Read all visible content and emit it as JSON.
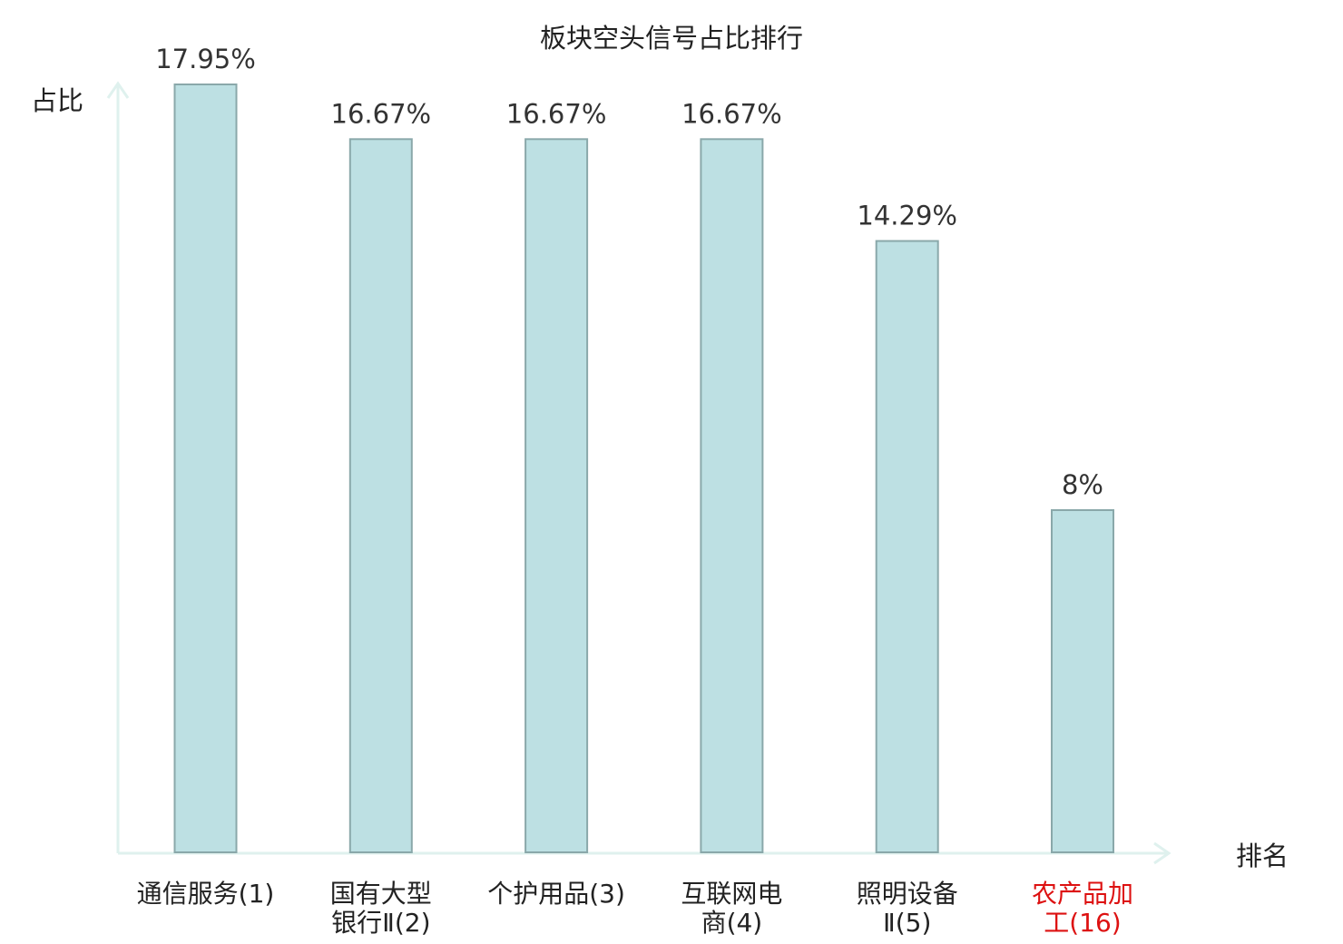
{
  "chart_data": {
    "type": "bar",
    "title": "板块空头信号占比排行",
    "ylabel": "占比",
    "xlabel": "排名",
    "categories": [
      [
        "通信服务(1)"
      ],
      [
        "国有大型",
        "银行Ⅱ(2)"
      ],
      [
        "个护用品(3)"
      ],
      [
        "互联网电",
        "商(4)"
      ],
      [
        "照明设备",
        "Ⅱ(5)"
      ],
      [
        "农产品加",
        "工(16)"
      ]
    ],
    "values": [
      17.95,
      16.67,
      16.67,
      16.67,
      14.29,
      8
    ],
    "value_labels": [
      "17.95%",
      "16.67%",
      "16.67%",
      "16.67%",
      "14.29%",
      "8%"
    ],
    "highlight_index": 5,
    "ylim": [
      0,
      17.95
    ],
    "grid": false,
    "colors": {
      "bar_fill": "#bde0e3",
      "bar_stroke": "#8aa8aa",
      "axis": "#dff1ee",
      "text": "#222222",
      "highlight_text": "#dd1111"
    }
  }
}
